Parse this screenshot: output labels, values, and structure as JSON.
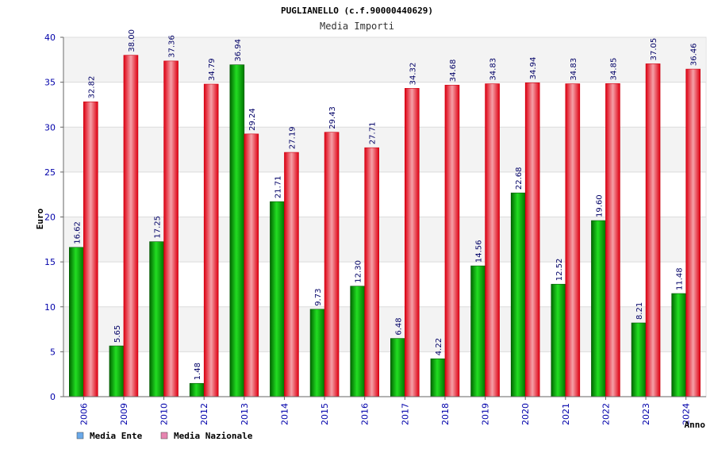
{
  "chart_data": {
    "type": "bar",
    "title": "PUGLIANELLO (c.f.90000440629)",
    "subtitle": "Media Importi",
    "xlabel": "Anno",
    "ylabel": "Euro",
    "ylim": [
      0,
      40
    ],
    "yticks": [
      "0",
      "5",
      "10",
      "15",
      "20",
      "25",
      "30",
      "35",
      "40"
    ],
    "grid": true,
    "legend_position": "bottom-left",
    "categories": [
      "2006",
      "2009",
      "2010",
      "2012",
      "2013",
      "2014",
      "2015",
      "2016",
      "2017",
      "2018",
      "2019",
      "2020",
      "2021",
      "2022",
      "2023",
      "2024"
    ],
    "series": [
      {
        "name": "Media Ente",
        "color": "#00bb00",
        "legend_color": "#6aa9e9",
        "values": [
          16.62,
          5.65,
          17.25,
          1.48,
          36.94,
          21.71,
          9.73,
          12.3,
          6.48,
          4.22,
          14.56,
          22.68,
          12.52,
          19.6,
          8.21,
          11.48
        ],
        "labels": [
          "16.62",
          "5.65",
          "17.25",
          "1.48",
          "36.94",
          "21.71",
          "9.73",
          "12.30",
          "6.48",
          "4.22",
          "14.56",
          "22.68",
          "12.52",
          "19.60",
          "8.21",
          "11.48"
        ]
      },
      {
        "name": "Media Nazionale",
        "color": "#ee1122",
        "legend_color": "#e685b0",
        "values": [
          32.82,
          38.0,
          37.36,
          34.79,
          29.24,
          27.19,
          29.43,
          27.71,
          34.32,
          34.68,
          34.83,
          34.94,
          34.83,
          34.85,
          37.05,
          36.46
        ],
        "labels": [
          "32.82",
          "38.00",
          "37.36",
          "34.79",
          "29.24",
          "27.19",
          "29.43",
          "27.71",
          "34.32",
          "34.68",
          "34.83",
          "34.94",
          "34.83",
          "34.85",
          "37.05",
          "36.46"
        ]
      }
    ]
  }
}
